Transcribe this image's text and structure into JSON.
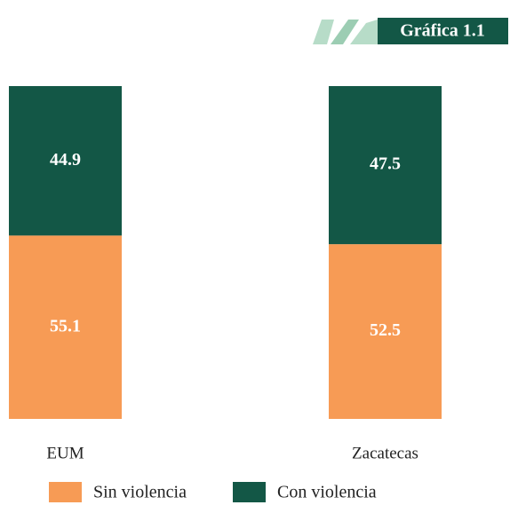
{
  "chart_data": {
    "type": "stacked-bar",
    "title": "Gráfica 1.1",
    "categories": [
      "EUM",
      "Zacatecas"
    ],
    "series": [
      {
        "name": "Sin violencia",
        "color": "#f79b55",
        "values": [
          55.1,
          52.5
        ]
      },
      {
        "name": "Con violencia",
        "color": "#135746",
        "values": [
          44.9,
          47.5
        ]
      }
    ],
    "ylim": [
      0,
      100
    ]
  }
}
